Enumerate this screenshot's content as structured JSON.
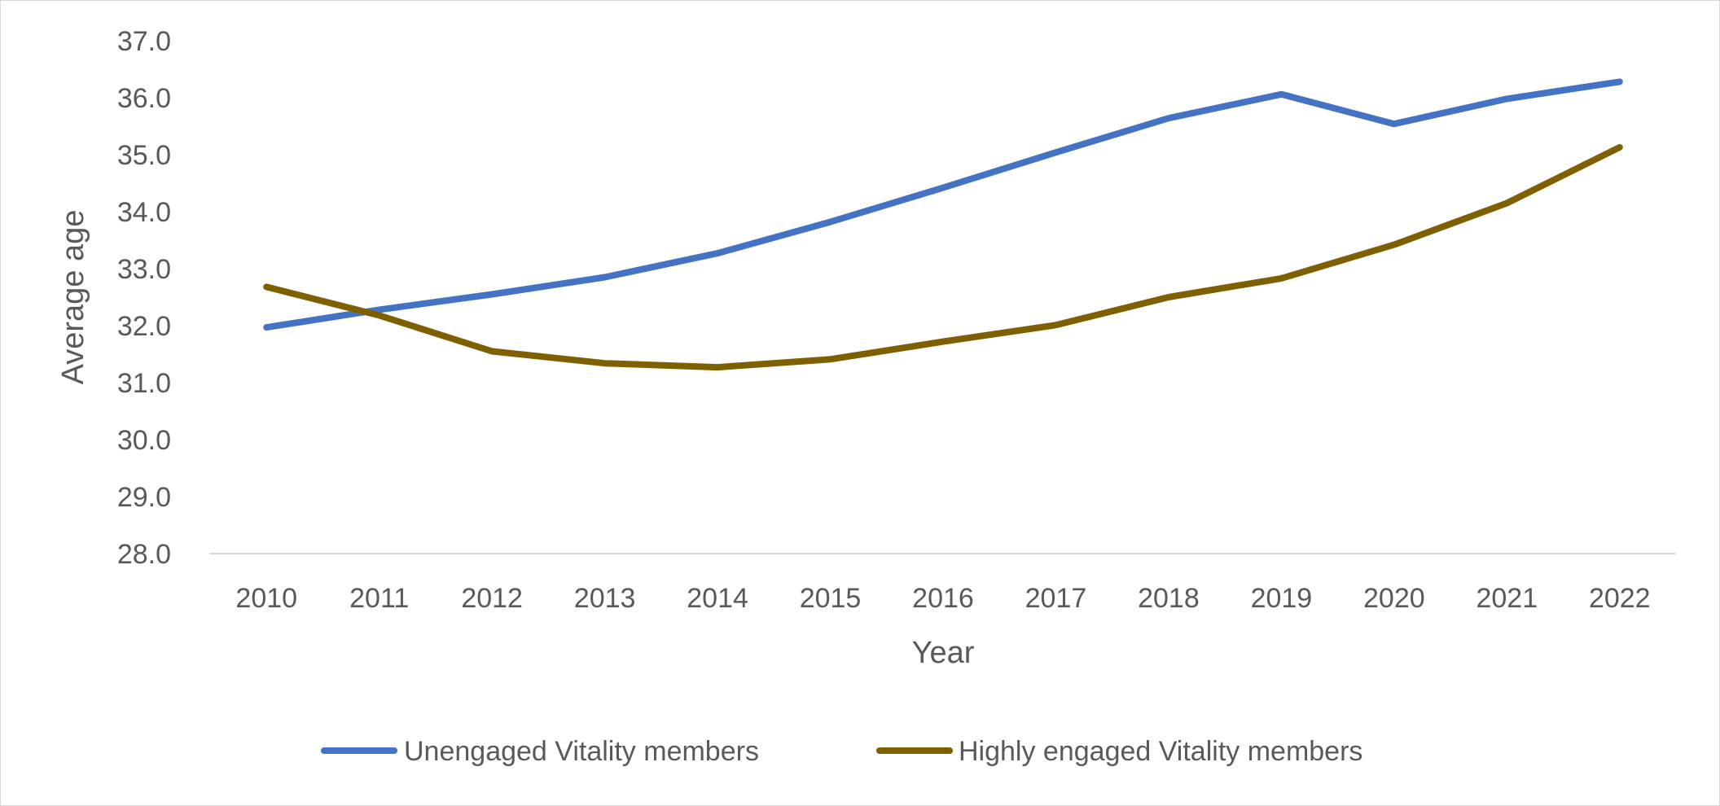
{
  "chart_data": {
    "type": "line",
    "title": "",
    "xlabel": "Year",
    "ylabel": "Average age",
    "categories": [
      "2010",
      "2011",
      "2012",
      "2013",
      "2014",
      "2015",
      "2016",
      "2017",
      "2018",
      "2019",
      "2020",
      "2021",
      "2022"
    ],
    "y_ticks": [
      "28.0",
      "29.0",
      "30.0",
      "31.0",
      "32.0",
      "33.0",
      "34.0",
      "35.0",
      "36.0",
      "37.0"
    ],
    "ylim": [
      28,
      37
    ],
    "grid": false,
    "legend_position": "bottom",
    "series": [
      {
        "name": "Unengaged Vitality members",
        "color": "#4472C4",
        "values": [
          31.97,
          32.28,
          32.55,
          32.85,
          33.27,
          33.82,
          34.42,
          35.04,
          35.64,
          36.06,
          35.54,
          35.98,
          36.28
        ]
      },
      {
        "name": "Highly engaged Vitality members",
        "color": "#7F6000",
        "values": [
          32.68,
          32.18,
          31.55,
          31.34,
          31.27,
          31.41,
          31.72,
          32.01,
          32.5,
          32.83,
          33.42,
          34.15,
          35.13
        ]
      }
    ]
  }
}
